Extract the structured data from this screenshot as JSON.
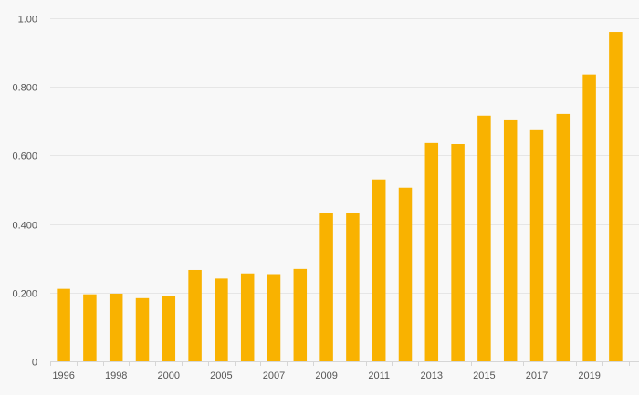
{
  "chart_data": {
    "type": "bar",
    "title": "",
    "xlabel": "",
    "ylabel": "",
    "color": "#f9b200",
    "grid": true,
    "ylim": [
      0,
      1.0
    ],
    "y_ticks": [
      {
        "value": 0,
        "label": "0"
      },
      {
        "value": 0.2,
        "label": "0.200"
      },
      {
        "value": 0.4,
        "label": "0.400"
      },
      {
        "value": 0.6,
        "label": "0.600"
      },
      {
        "value": 0.8,
        "label": "0.800"
      },
      {
        "value": 1.0,
        "label": "1.00"
      }
    ],
    "x_tick_labels": [
      "1996",
      "1998",
      "2000",
      "2005",
      "2007",
      "2009",
      "2011",
      "2013",
      "2015",
      "2017",
      "2019"
    ],
    "categories": [
      "1996",
      "1997",
      "1998",
      "1999",
      "2000",
      "2004",
      "2005",
      "2006",
      "2007",
      "2008",
      "2009",
      "2010",
      "2011",
      "2012",
      "2013",
      "2014",
      "2015",
      "2016",
      "2017",
      "2018",
      "2019",
      "2020"
    ],
    "values": [
      0.211,
      0.195,
      0.197,
      0.184,
      0.19,
      0.266,
      0.241,
      0.256,
      0.254,
      0.269,
      0.432,
      0.432,
      0.53,
      0.506,
      0.636,
      0.633,
      0.716,
      0.705,
      0.676,
      0.721,
      0.836,
      0.96
    ]
  }
}
